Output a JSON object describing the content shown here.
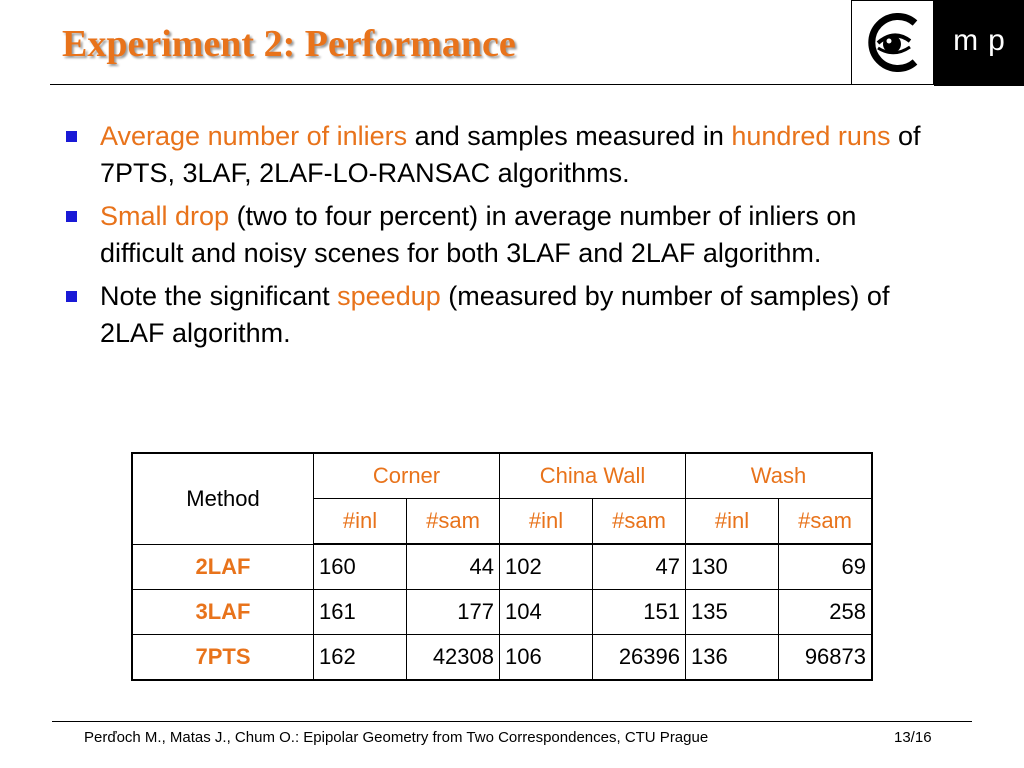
{
  "slide": {
    "title": "Experiment 2: Performance",
    "logo_text": "mp"
  },
  "bullets": [
    {
      "parts": [
        {
          "text": "Average number of inliers",
          "highlight": true
        },
        {
          "text": " and samples measured in ",
          "highlight": false
        },
        {
          "text": "hundred runs",
          "highlight": true
        },
        {
          "text": " of 7PTS, 3LAF, 2LAF-LO-RANSAC algorithms.",
          "highlight": false
        }
      ]
    },
    {
      "parts": [
        {
          "text": "Small drop",
          "highlight": true
        },
        {
          "text": " (two to four percent) in average number of inliers on difficult and noisy scenes for both 3LAF and 2LAF algorithm.",
          "highlight": false
        }
      ]
    },
    {
      "parts": [
        {
          "text": "Note the significant ",
          "highlight": false
        },
        {
          "text": "speedup",
          "highlight": true
        },
        {
          "text": " (measured by number of samples) of 2LAF algorithm.",
          "highlight": false
        }
      ]
    }
  ],
  "table": {
    "method_header": "Method",
    "groups": [
      "Corner",
      "China Wall",
      "Wash"
    ],
    "subheaders": [
      "#inl",
      "#sam",
      "#inl",
      "#sam",
      "#inl",
      "#sam"
    ],
    "rows": [
      {
        "method": "2LAF",
        "values": [
          "160",
          "44",
          "102",
          "47",
          "130",
          "69"
        ]
      },
      {
        "method": "3LAF",
        "values": [
          "161",
          "177",
          "104",
          "151",
          "135",
          "258"
        ]
      },
      {
        "method": "7PTS",
        "values": [
          "162",
          "42308",
          "106",
          "26396",
          "136",
          "96873"
        ]
      }
    ]
  },
  "footer": {
    "citation": "Perďoch M., Matas J., Chum O.: Epipolar Geometry from Two Correspondences, CTU Prague",
    "page": "13/16"
  },
  "colors": {
    "accent": "#e8731b",
    "bullet": "#1a1ad6"
  }
}
